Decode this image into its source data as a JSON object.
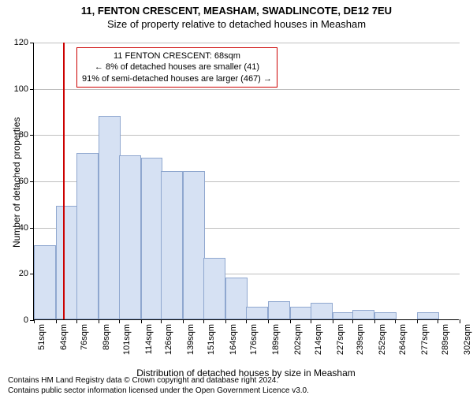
{
  "titles": {
    "main": "11, FENTON CRESCENT, MEASHAM, SWADLINCOTE, DE12 7EU",
    "sub": "Size of property relative to detached houses in Measham",
    "y_axis": "Number of detached properties",
    "x_axis": "Distribution of detached houses by size in Measham"
  },
  "footer": {
    "line1": "Contains HM Land Registry data © Crown copyright and database right 2024.",
    "line2": "Contains public sector information licensed under the Open Government Licence v3.0."
  },
  "annotation": {
    "line1": "11 FENTON CRESCENT: 68sqm",
    "line2": "← 8% of detached houses are smaller (41)",
    "line3": "91% of semi-detached houses are larger (467) →",
    "border_color": "#cc0000"
  },
  "chart": {
    "type": "histogram",
    "ylim": [
      0,
      120
    ],
    "ytick_step": 20,
    "grid_color": "#808080",
    "background_color": "#ffffff",
    "bar_fill": "#d6e1f3",
    "bar_border": "#8fa7cf",
    "bar_width": 1.0,
    "marker_x": 68,
    "marker_color": "#cc0000",
    "x_tick_labels": [
      "51sqm",
      "64sqm",
      "76sqm",
      "89sqm",
      "101sqm",
      "114sqm",
      "126sqm",
      "139sqm",
      "151sqm",
      "164sqm",
      "176sqm",
      "189sqm",
      "202sqm",
      "214sqm",
      "227sqm",
      "239sqm",
      "252sqm",
      "264sqm",
      "277sqm",
      "289sqm",
      "302sqm"
    ],
    "x_tick_values": [
      51,
      64,
      76,
      89,
      101,
      114,
      126,
      139,
      151,
      164,
      176,
      189,
      202,
      214,
      227,
      239,
      252,
      264,
      277,
      289,
      302
    ],
    "bars": [
      {
        "x": 51,
        "v": 32
      },
      {
        "x": 64,
        "v": 49
      },
      {
        "x": 76,
        "v": 72
      },
      {
        "x": 89,
        "v": 88
      },
      {
        "x": 101,
        "v": 71
      },
      {
        "x": 114,
        "v": 70
      },
      {
        "x": 126,
        "v": 64
      },
      {
        "x": 139,
        "v": 64
      },
      {
        "x": 151,
        "v": 26.5
      },
      {
        "x": 164,
        "v": 18
      },
      {
        "x": 176,
        "v": 5.5
      },
      {
        "x": 189,
        "v": 8
      },
      {
        "x": 202,
        "v": 5.5
      },
      {
        "x": 214,
        "v": 7
      },
      {
        "x": 227,
        "v": 3
      },
      {
        "x": 239,
        "v": 4
      },
      {
        "x": 252,
        "v": 3
      },
      {
        "x": 264,
        "v": 0
      },
      {
        "x": 277,
        "v": 3
      },
      {
        "x": 289,
        "v": 0
      }
    ],
    "title_fontsize": 13,
    "label_fontsize": 12,
    "tick_fontsize": 11,
    "anno_fontsize": 11
  }
}
